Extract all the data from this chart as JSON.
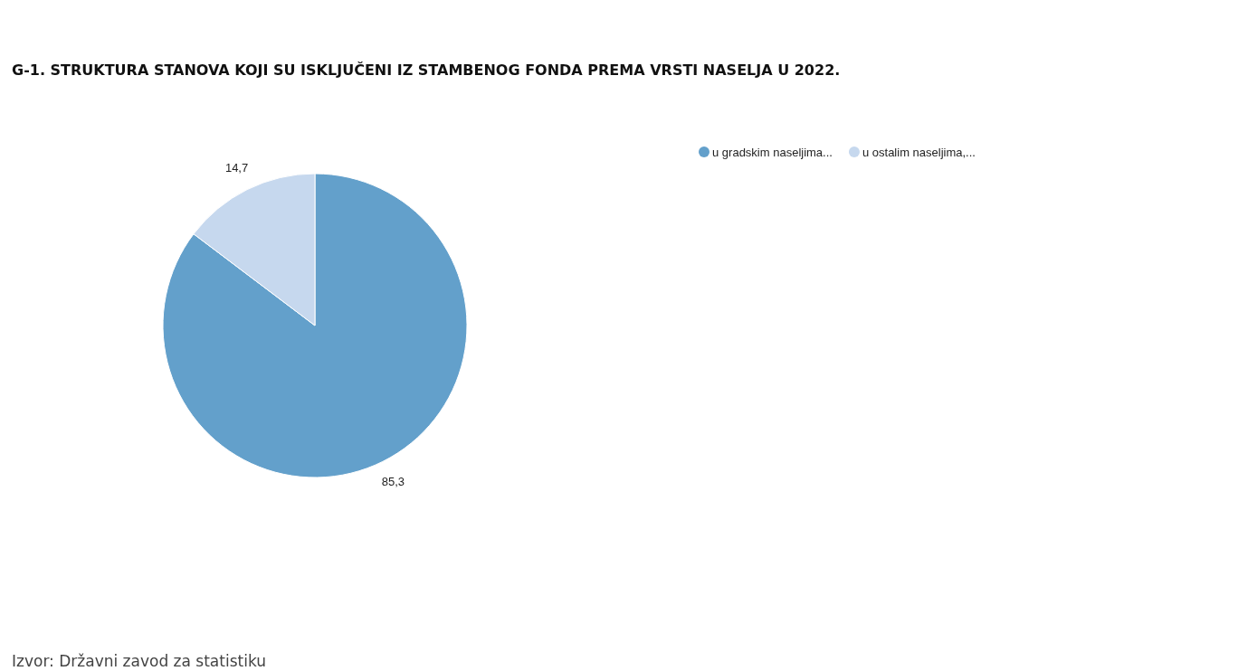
{
  "chart_data": {
    "type": "pie",
    "title": "G-1. STRUKTURA STANOVA KOJI SU ISKLJUČENI IZ STAMBENOG FONDA PREMA VRSTI NASELJA U 2022.",
    "categories": [
      "u gradskim naseljima...",
      "u ostalim naseljima,..."
    ],
    "values": [
      85.3,
      14.7
    ],
    "colors": [
      "#63a0cb",
      "#c6d8ee"
    ],
    "value_labels": [
      "85,3",
      "14,7"
    ],
    "legend": "top right",
    "annotations": [
      "Izvor: Državni zavod za statistiku"
    ]
  }
}
